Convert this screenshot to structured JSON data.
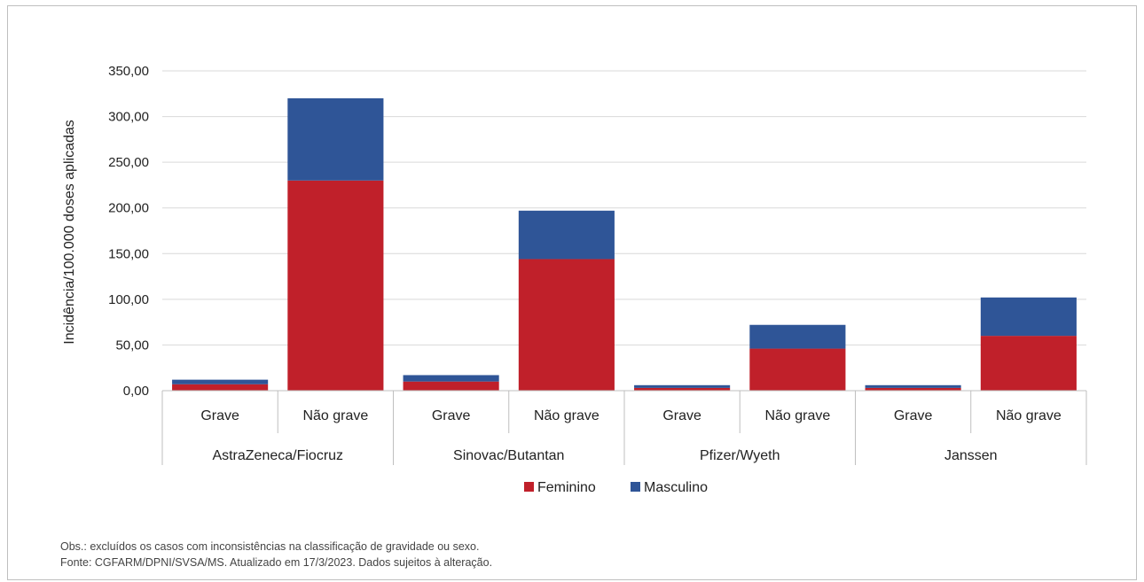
{
  "chart_data": {
    "type": "bar",
    "stacked": true,
    "ylabel": "Incidência/100.000 doses aplicadas",
    "ylim": [
      0,
      350
    ],
    "yticks": [
      0,
      50,
      100,
      150,
      200,
      250,
      300,
      350
    ],
    "ytick_labels": [
      "0,00",
      "50,00",
      "100,00",
      "150,00",
      "200,00",
      "250,00",
      "300,00",
      "350,00"
    ],
    "grid": true,
    "legend_position": "bottom",
    "groups": [
      "AstraZeneca/Fiocruz",
      "Sinovac/Butantan",
      "Pfizer/Wyeth",
      "Janssen"
    ],
    "categories": [
      "Grave",
      "Não grave",
      "Grave",
      "Não grave",
      "Grave",
      "Não grave",
      "Grave",
      "Não grave"
    ],
    "series": [
      {
        "name": "Feminino",
        "color": "#c0202a",
        "values": [
          7,
          230,
          10,
          144,
          3,
          46,
          3,
          60
        ]
      },
      {
        "name": "Masculino",
        "color": "#2f5597",
        "values": [
          5,
          90,
          7,
          53,
          3,
          26,
          3,
          42
        ]
      }
    ]
  },
  "notes": {
    "obs": "Obs.: excluídos os casos com inconsistências na classificação de gravidade ou sexo.",
    "fonte": "Fonte: CGFARM/DPNI/SVSA/MS. Atualizado em 17/3/2023. Dados sujeitos à alteração."
  }
}
